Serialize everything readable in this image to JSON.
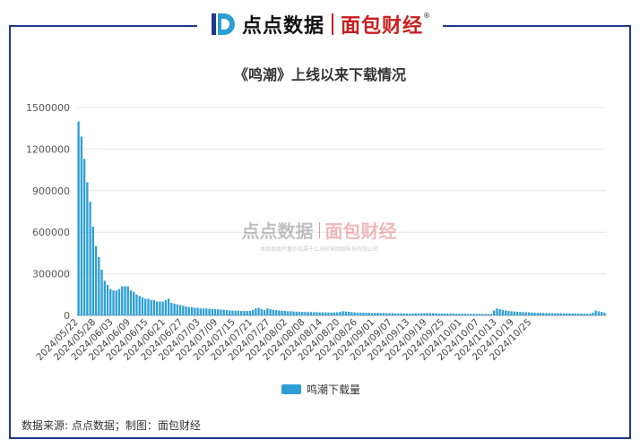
{
  "header": {
    "brand_left": "点点数据",
    "brand_right": "面包财经",
    "reg_mark": "®"
  },
  "watermark": {
    "brand_left": "点点数据",
    "brand_right": "面包财经",
    "caption": "本图表图片著作权属于上海砂探网络科技有限公司"
  },
  "legend": {
    "label": "鸣潮下载量"
  },
  "source_note": "数据来源: 点点数据；制图：面包财经",
  "colors": {
    "bar": "#2e9fd4",
    "frame": "#1f3a8a",
    "brand_red": "#c81e1e"
  },
  "chart_data": {
    "type": "bar",
    "title": "《鸣潮》上线以来下载情况",
    "xlabel": "",
    "ylabel": "",
    "ylim": [
      0,
      1500000
    ],
    "yticks": [
      0,
      300000,
      600000,
      900000,
      1200000,
      1500000
    ],
    "grid": true,
    "legend_position": "bottom",
    "start_date": "2024-05-22",
    "x_tick_labels": [
      "2024/05/22",
      "2024/05/28",
      "2024/06/03",
      "2024/06/09",
      "2024/06/15",
      "2024/06/21",
      "2024/06/27",
      "2024/07/03",
      "2024/07/09",
      "2024/07/15",
      "2024/07/21",
      "2024/07/27",
      "2024/08/02",
      "2024/08/08",
      "2024/08/14",
      "2024/08/20",
      "2024/08/26",
      "2024/09/01",
      "2024/09/07",
      "2024/09/13",
      "2024/09/19",
      "2024/09/25",
      "2024/10/01",
      "2024/10/07",
      "2024/10/13",
      "2024/10/19",
      "2024/10/25"
    ],
    "series": [
      {
        "name": "鸣潮下载量",
        "values": [
          1400000,
          1290000,
          1130000,
          960000,
          820000,
          640000,
          500000,
          420000,
          330000,
          250000,
          220000,
          190000,
          180000,
          180000,
          190000,
          210000,
          210000,
          210000,
          180000,
          170000,
          150000,
          140000,
          130000,
          120000,
          120000,
          110000,
          110000,
          100000,
          100000,
          100000,
          110000,
          120000,
          90000,
          85000,
          80000,
          75000,
          70000,
          65000,
          60000,
          60000,
          55000,
          55000,
          50000,
          50000,
          50000,
          48000,
          46000,
          45000,
          44000,
          42000,
          40000,
          38000,
          36000,
          35000,
          34000,
          33000,
          32000,
          32000,
          32000,
          33000,
          40000,
          50000,
          55000,
          45000,
          38000,
          50000,
          45000,
          40000,
          38000,
          36000,
          34000,
          32000,
          30000,
          30000,
          28000,
          27000,
          26000,
          25000,
          25000,
          24000,
          24000,
          23000,
          23000,
          22000,
          22000,
          22000,
          21000,
          21000,
          22000,
          23000,
          25000,
          30000,
          28000,
          26000,
          24000,
          22000,
          21000,
          20000,
          20000,
          19000,
          19000,
          18000,
          18000,
          18000,
          17000,
          17000,
          16000,
          16000,
          16000,
          15000,
          15000,
          15000,
          14000,
          14000,
          14000,
          14000,
          15000,
          15000,
          16000,
          16000,
          17000,
          17000,
          16000,
          15000,
          14000,
          14000,
          14000,
          13000,
          13000,
          13000,
          12000,
          12000,
          12000,
          12000,
          11000,
          11000,
          11000,
          11000,
          11000,
          10000,
          10000,
          10000,
          10000,
          35000,
          50000,
          45000,
          40000,
          35000,
          32000,
          30000,
          28000,
          26000,
          25000,
          24000,
          23000,
          22000,
          21000,
          20000,
          19000,
          18000,
          18000,
          17000,
          17000,
          16000,
          16000,
          16000,
          15000,
          15000,
          15000,
          14000,
          14000,
          14000,
          13000,
          13000,
          13000,
          12000,
          12000,
          20000,
          35000,
          30000,
          25000,
          20000
        ]
      }
    ]
  }
}
